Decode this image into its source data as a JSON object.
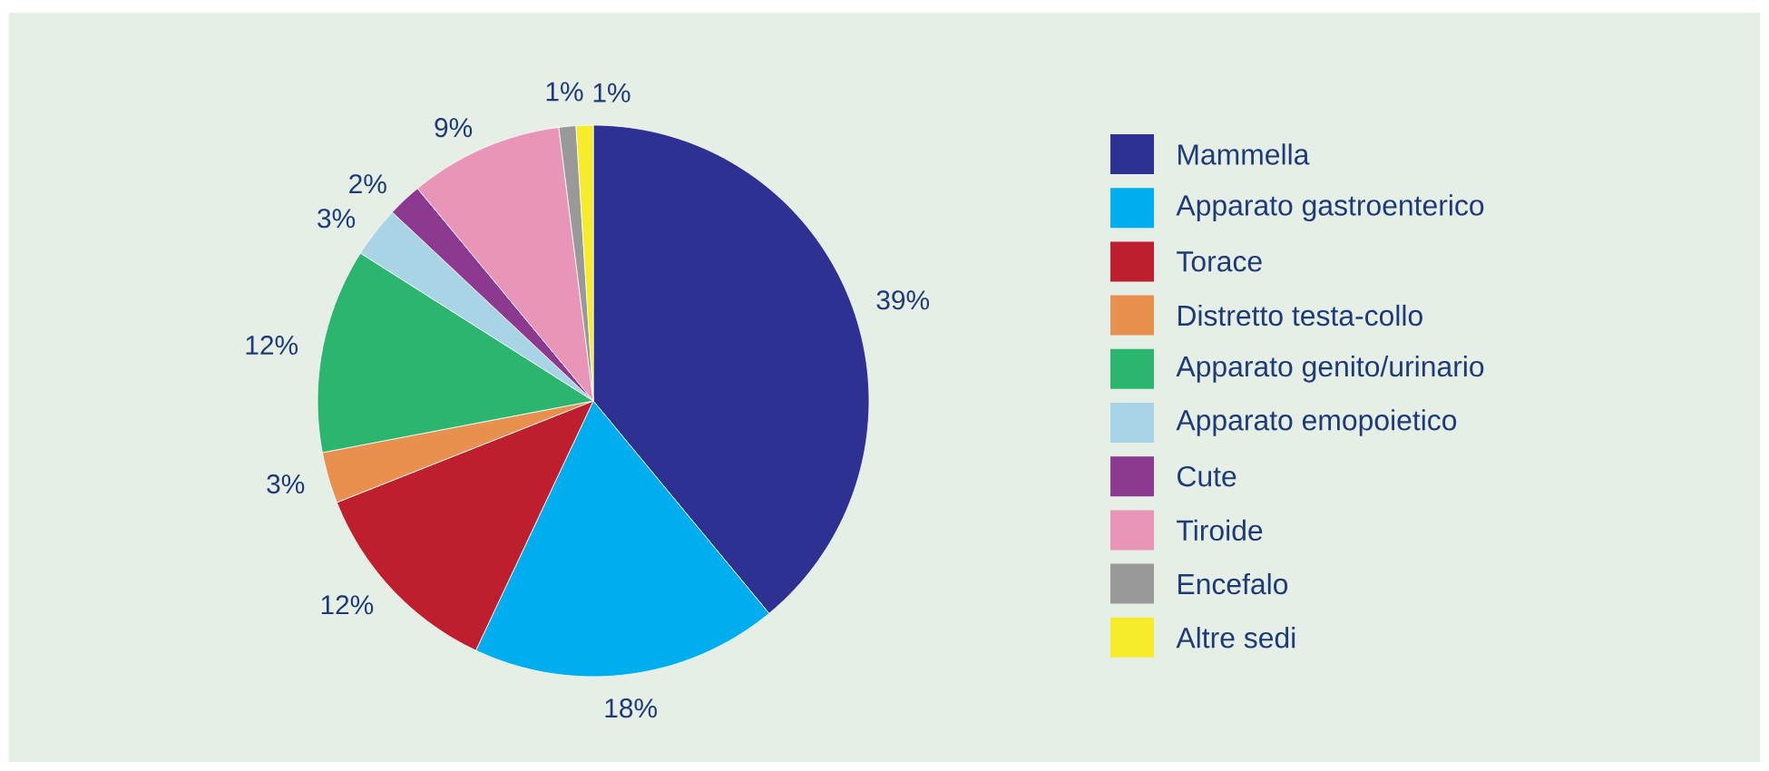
{
  "chart_data": {
    "type": "pie",
    "categories": [
      "Mammella",
      "Apparato gastroenterico",
      "Torace",
      "Distretto testa-collo",
      "Apparato genito/urinario",
      "Apparato emopoietico",
      "Cute",
      "Tiroide",
      "Encefalo",
      "Altre sedi"
    ],
    "values": [
      39,
      18,
      12,
      3,
      12,
      3,
      2,
      9,
      1,
      1
    ],
    "value_labels": [
      "39%",
      "18%",
      "12%",
      "3%",
      "12%",
      "3%",
      "2%",
      "9%",
      "1%",
      "1%"
    ],
    "colors": [
      "#2e3192",
      "#00aeef",
      "#be1e2d",
      "#e8914f",
      "#2cb56f",
      "#a8d4e6",
      "#8b3a8f",
      "#e895b8",
      "#999999",
      "#f7ec2c"
    ],
    "legend": "right"
  }
}
